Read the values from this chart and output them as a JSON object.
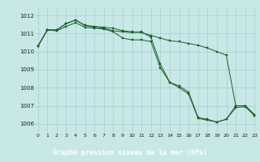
{
  "bg_color": "#c8e8e8",
  "grid_color": "#a8cccc",
  "line_color": "#1a5c28",
  "xlabel": "Graphe pression niveau de la mer (hPa)",
  "xlabel_bg": "#2a7a3a",
  "xlabel_fg": "#ffffff",
  "ylim": [
    1005.5,
    1012.5
  ],
  "xlim": [
    -0.3,
    23.3
  ],
  "yticks": [
    1006,
    1007,
    1008,
    1009,
    1010,
    1011,
    1012
  ],
  "xticks": [
    0,
    1,
    2,
    3,
    4,
    5,
    6,
    7,
    8,
    9,
    10,
    11,
    12,
    13,
    14,
    15,
    16,
    17,
    18,
    19,
    20,
    21,
    22,
    23
  ],
  "series1": [
    1010.3,
    1011.2,
    1011.2,
    1011.55,
    1011.75,
    1011.45,
    1011.4,
    1011.35,
    1011.3,
    1011.15,
    1011.1,
    1011.05,
    1010.9,
    1010.75,
    1010.6,
    1010.55,
    1010.45,
    1010.35,
    1010.2,
    1010.0,
    1009.8,
    1007.0,
    1007.0,
    1006.5
  ],
  "series2": [
    1010.3,
    1011.2,
    1011.2,
    1011.55,
    1011.75,
    1011.45,
    1011.35,
    1011.3,
    1011.15,
    1011.1,
    1011.05,
    1011.1,
    1010.8,
    1009.3,
    1008.3,
    1008.1,
    1007.75,
    1006.35,
    1006.25,
    1006.1,
    1006.25,
    1007.0,
    1007.0,
    1006.5
  ],
  "series3": [
    1010.3,
    1011.2,
    1011.15,
    1011.4,
    1011.6,
    1011.35,
    1011.3,
    1011.25,
    1011.1,
    1010.75,
    1010.65,
    1010.65,
    1010.55,
    1009.1,
    1008.3,
    1008.0,
    1007.65,
    1006.3,
    1006.2,
    1006.1,
    1006.25,
    1006.9,
    1006.95,
    1006.45
  ]
}
